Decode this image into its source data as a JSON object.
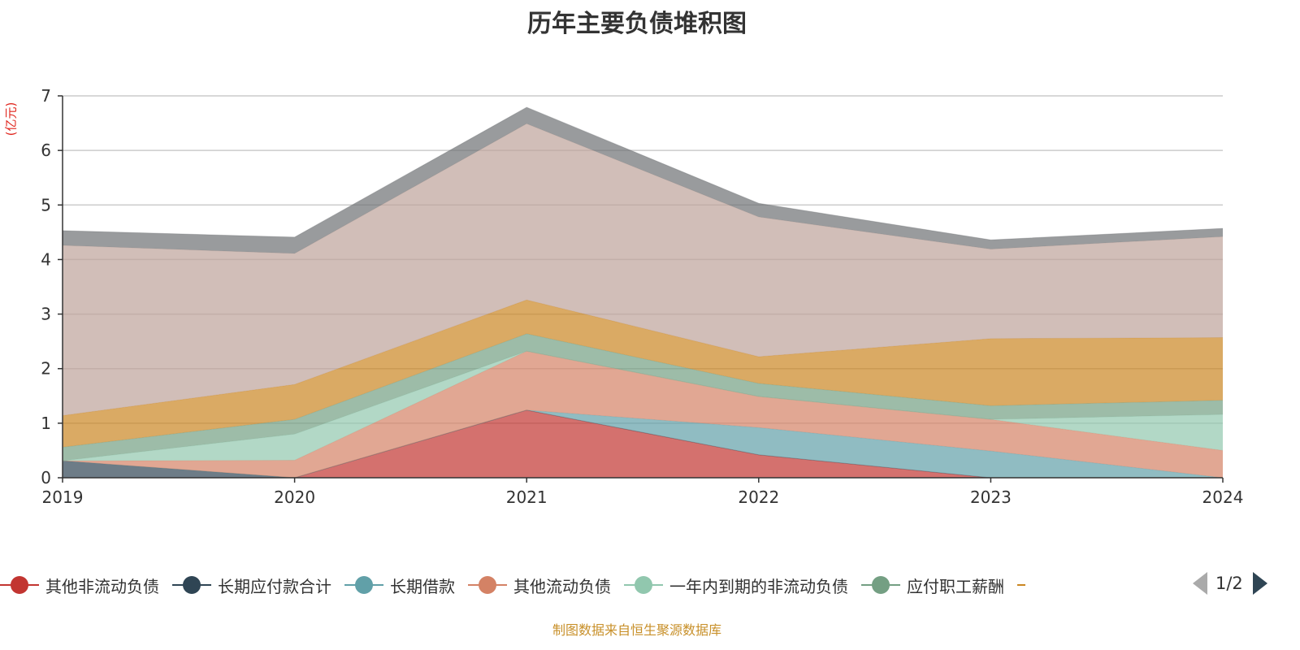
{
  "title": "历年主要负债堆积图",
  "unit_label": "(亿元)",
  "source": "制图数据来自恒生聚源数据库",
  "legend_page": "1/2",
  "chart_data": {
    "type": "area",
    "stacked": true,
    "title": "历年主要负债堆积图",
    "ylabel": "(亿元)",
    "ylim": [
      0,
      7
    ],
    "yticks": [
      "0",
      "1",
      "2",
      "3",
      "4",
      "5",
      "6",
      "7"
    ],
    "categories": [
      "2019",
      "2020",
      "2021",
      "2022",
      "2023",
      "2024"
    ],
    "grid": true,
    "legend_position": "bottom",
    "series": [
      {
        "name": "其他非流动负债",
        "color": "#c23531",
        "values": [
          0,
          0,
          1.24,
          0.42,
          0,
          0
        ]
      },
      {
        "name": "长期应付款合计",
        "color": "#2f4554",
        "values": [
          0.31,
          0,
          0,
          0,
          0,
          0
        ]
      },
      {
        "name": "长期借款",
        "color": "#61a0a8",
        "values": [
          0,
          0,
          0,
          0.5,
          0.49,
          0
        ]
      },
      {
        "name": "其他流动负债",
        "color": "#d48265",
        "values": [
          0,
          0.32,
          1.08,
          0.57,
          0.58,
          0.5
        ]
      },
      {
        "name": "一年内到期的非流动负债",
        "color": "#91c7ae",
        "values": [
          0,
          0.48,
          0,
          0,
          0,
          0.66
        ]
      },
      {
        "name": "应付职工薪酬",
        "color": "#749f83",
        "values": [
          0.25,
          0.27,
          0.32,
          0.24,
          0.25,
          0.26
        ]
      },
      {
        "color": "#ca8622",
        "values": [
          0.58,
          0.64,
          0.62,
          0.49,
          1.23,
          1.15
        ]
      },
      {
        "color": "#bda29a",
        "values": [
          3.12,
          2.4,
          3.23,
          2.56,
          1.64,
          1.85
        ]
      },
      {
        "color": "#6e7074",
        "values": [
          0.27,
          0.3,
          0.3,
          0.25,
          0.17,
          0.15
        ]
      }
    ]
  }
}
